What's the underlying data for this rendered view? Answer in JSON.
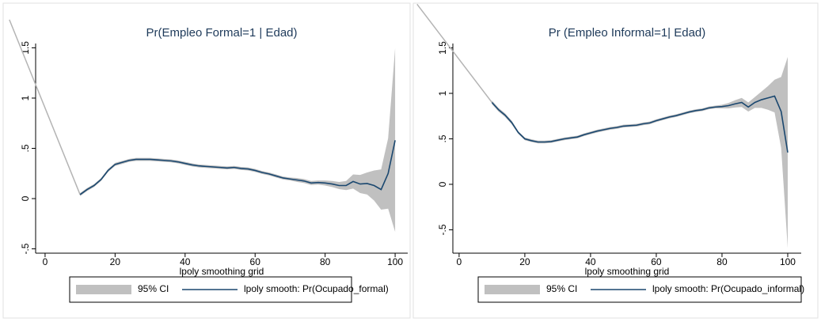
{
  "chart_data": [
    {
      "type": "line",
      "title": "Pr(Empleo Formal=1 | Edad)",
      "xlabel": "lpoly smoothing grid",
      "x": [
        10,
        12,
        14,
        16,
        18,
        20,
        22,
        24,
        26,
        28,
        30,
        32,
        34,
        36,
        38,
        40,
        42,
        44,
        46,
        48,
        50,
        52,
        54,
        56,
        58,
        60,
        62,
        64,
        66,
        68,
        70,
        72,
        74,
        76,
        78,
        80,
        82,
        84,
        86,
        88,
        90,
        92,
        94,
        96,
        98,
        100
      ],
      "series": [
        {
          "name": "95% CI",
          "color": "#c0c0c0",
          "lower": [
            0.025,
            0.075,
            0.115,
            0.175,
            0.265,
            0.325,
            0.345,
            0.365,
            0.375,
            0.375,
            0.375,
            0.37,
            0.365,
            0.36,
            0.35,
            0.335,
            0.32,
            0.31,
            0.305,
            0.3,
            0.295,
            0.29,
            0.295,
            0.285,
            0.28,
            0.265,
            0.245,
            0.23,
            0.21,
            0.19,
            0.18,
            0.165,
            0.155,
            0.135,
            0.14,
            0.13,
            0.115,
            0.095,
            0.085,
            0.1,
            0.055,
            0.04,
            -0.02,
            -0.11,
            -0.1,
            -0.33
          ],
          "upper": [
            0.055,
            0.105,
            0.145,
            0.205,
            0.295,
            0.355,
            0.375,
            0.395,
            0.405,
            0.405,
            0.405,
            0.4,
            0.395,
            0.39,
            0.38,
            0.365,
            0.35,
            0.34,
            0.335,
            0.33,
            0.325,
            0.32,
            0.325,
            0.315,
            0.31,
            0.295,
            0.275,
            0.26,
            0.24,
            0.22,
            0.21,
            0.205,
            0.195,
            0.175,
            0.18,
            0.18,
            0.175,
            0.165,
            0.175,
            0.24,
            0.235,
            0.26,
            0.28,
            0.29,
            0.6,
            1.5
          ]
        },
        {
          "name": "lpoly smooth: Pr(Ocupado_formal)",
          "color": "#1a476f",
          "values": [
            0.04,
            0.09,
            0.13,
            0.19,
            0.28,
            0.34,
            0.36,
            0.38,
            0.39,
            0.39,
            0.39,
            0.385,
            0.38,
            0.375,
            0.365,
            0.35,
            0.335,
            0.325,
            0.32,
            0.315,
            0.31,
            0.305,
            0.31,
            0.3,
            0.295,
            0.28,
            0.26,
            0.245,
            0.225,
            0.205,
            0.195,
            0.185,
            0.175,
            0.155,
            0.16,
            0.155,
            0.145,
            0.13,
            0.13,
            0.17,
            0.145,
            0.15,
            0.13,
            0.09,
            0.25,
            0.58
          ]
        }
      ],
      "guide_line": {
        "color": "#b4b4b4",
        "x": [
          -10.2,
          10
        ],
        "values": [
          1.78,
          0.04
        ]
      },
      "xlim": [
        -2.7,
        103.6
      ],
      "ylim": [
        -0.543,
        1.543
      ],
      "xticks": [
        0,
        20,
        40,
        60,
        80,
        100
      ],
      "yticks": [
        {
          "value": -0.5,
          "label": "-.5"
        },
        0,
        {
          "value": 0.5,
          "label": ".5"
        },
        1,
        1.5
      ]
    },
    {
      "type": "line",
      "title": "Pr (Empleo Informal=1| Edad)",
      "xlabel": "lpoly smoothing grid",
      "x": [
        10,
        12,
        14,
        16,
        18,
        20,
        22,
        24,
        26,
        28,
        30,
        32,
        34,
        36,
        38,
        40,
        42,
        44,
        46,
        48,
        50,
        52,
        54,
        56,
        58,
        60,
        62,
        64,
        66,
        68,
        70,
        72,
        74,
        76,
        78,
        80,
        82,
        84,
        86,
        88,
        90,
        92,
        94,
        96,
        98,
        100
      ],
      "series": [
        {
          "name": "95% CI",
          "color": "#c0c0c0",
          "lower": [
            0.88,
            0.8,
            0.74,
            0.66,
            0.555,
            0.485,
            0.465,
            0.45,
            0.45,
            0.455,
            0.47,
            0.485,
            0.495,
            0.505,
            0.53,
            0.55,
            0.57,
            0.585,
            0.6,
            0.61,
            0.625,
            0.63,
            0.635,
            0.65,
            0.66,
            0.685,
            0.705,
            0.725,
            0.74,
            0.76,
            0.78,
            0.795,
            0.805,
            0.825,
            0.835,
            0.835,
            0.835,
            0.845,
            0.85,
            0.8,
            0.84,
            0.84,
            0.82,
            0.79,
            0.4,
            -0.7
          ],
          "upper": [
            0.92,
            0.84,
            0.78,
            0.7,
            0.585,
            0.515,
            0.495,
            0.48,
            0.48,
            0.485,
            0.5,
            0.515,
            0.525,
            0.535,
            0.56,
            0.58,
            0.6,
            0.615,
            0.63,
            0.64,
            0.655,
            0.66,
            0.665,
            0.68,
            0.69,
            0.715,
            0.735,
            0.755,
            0.77,
            0.79,
            0.81,
            0.825,
            0.835,
            0.855,
            0.865,
            0.875,
            0.895,
            0.925,
            0.95,
            0.9,
            0.96,
            1.02,
            1.08,
            1.15,
            1.18,
            1.4
          ]
        },
        {
          "name": "lpoly smooth: Pr(Ocupado_informal)",
          "color": "#1a476f",
          "values": [
            0.9,
            0.82,
            0.76,
            0.68,
            0.57,
            0.5,
            0.48,
            0.465,
            0.465,
            0.47,
            0.485,
            0.5,
            0.51,
            0.52,
            0.545,
            0.565,
            0.585,
            0.6,
            0.615,
            0.625,
            0.64,
            0.645,
            0.65,
            0.665,
            0.675,
            0.7,
            0.72,
            0.74,
            0.755,
            0.775,
            0.795,
            0.81,
            0.82,
            0.84,
            0.85,
            0.855,
            0.865,
            0.885,
            0.9,
            0.85,
            0.9,
            0.93,
            0.95,
            0.97,
            0.8,
            0.35
          ]
        }
      ],
      "guide_line": {
        "color": "#b4b4b4",
        "x": [
          -12.8,
          10
        ],
        "values": [
          1.98,
          0.9
        ]
      },
      "xlim": [
        -1.9,
        104.1
      ],
      "ylim": [
        -0.757,
        1.548
      ],
      "xticks": [
        0,
        20,
        40,
        60,
        80,
        100
      ],
      "yticks": [
        {
          "value": -0.5,
          "label": "-.5"
        },
        0,
        {
          "value": 0.5,
          "label": ".5"
        },
        1,
        1.5
      ]
    }
  ]
}
